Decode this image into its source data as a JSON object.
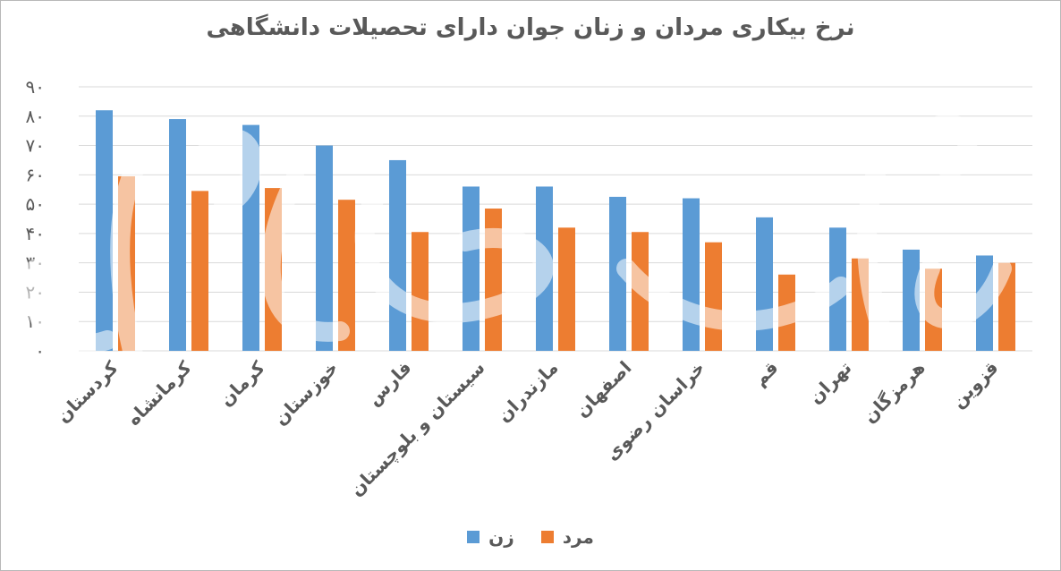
{
  "chart_data": {
    "type": "bar",
    "title": "نرخ بیکاری مردان و زنان جوان دارای تحصیلات دانشگاهی",
    "xlabel": "",
    "ylabel": "",
    "ylim": [
      0,
      90
    ],
    "yticks": [
      "۰",
      "۱۰",
      "۲۰",
      "۳۰",
      "۴۰",
      "۵۰",
      "۶۰",
      "۷۰",
      "۸۰",
      "۹۰"
    ],
    "grid": true,
    "legend_position": "bottom",
    "categories": [
      "کردستان",
      "کرمانشاه",
      "کرمان",
      "خوزستان",
      "فارس",
      "سیستان و بلوچستان",
      "مازندران",
      "اصفهان",
      "خراسان رضوی",
      "قم",
      "تهران",
      "هرمزگان",
      "قزوین"
    ],
    "series": [
      {
        "name": "زن",
        "color": "#5b9bd5",
        "values": [
          82,
          79,
          77,
          70,
          65,
          56,
          56,
          52.5,
          52,
          45.5,
          42,
          34.5,
          32.5
        ]
      },
      {
        "name": "مرد",
        "color": "#ed7d31",
        "values": [
          59.5,
          54.5,
          55.5,
          51.5,
          40.5,
          48.5,
          42,
          40.5,
          37,
          26,
          31.5,
          28,
          30
        ]
      }
    ]
  },
  "watermark": "اقتصاد"
}
